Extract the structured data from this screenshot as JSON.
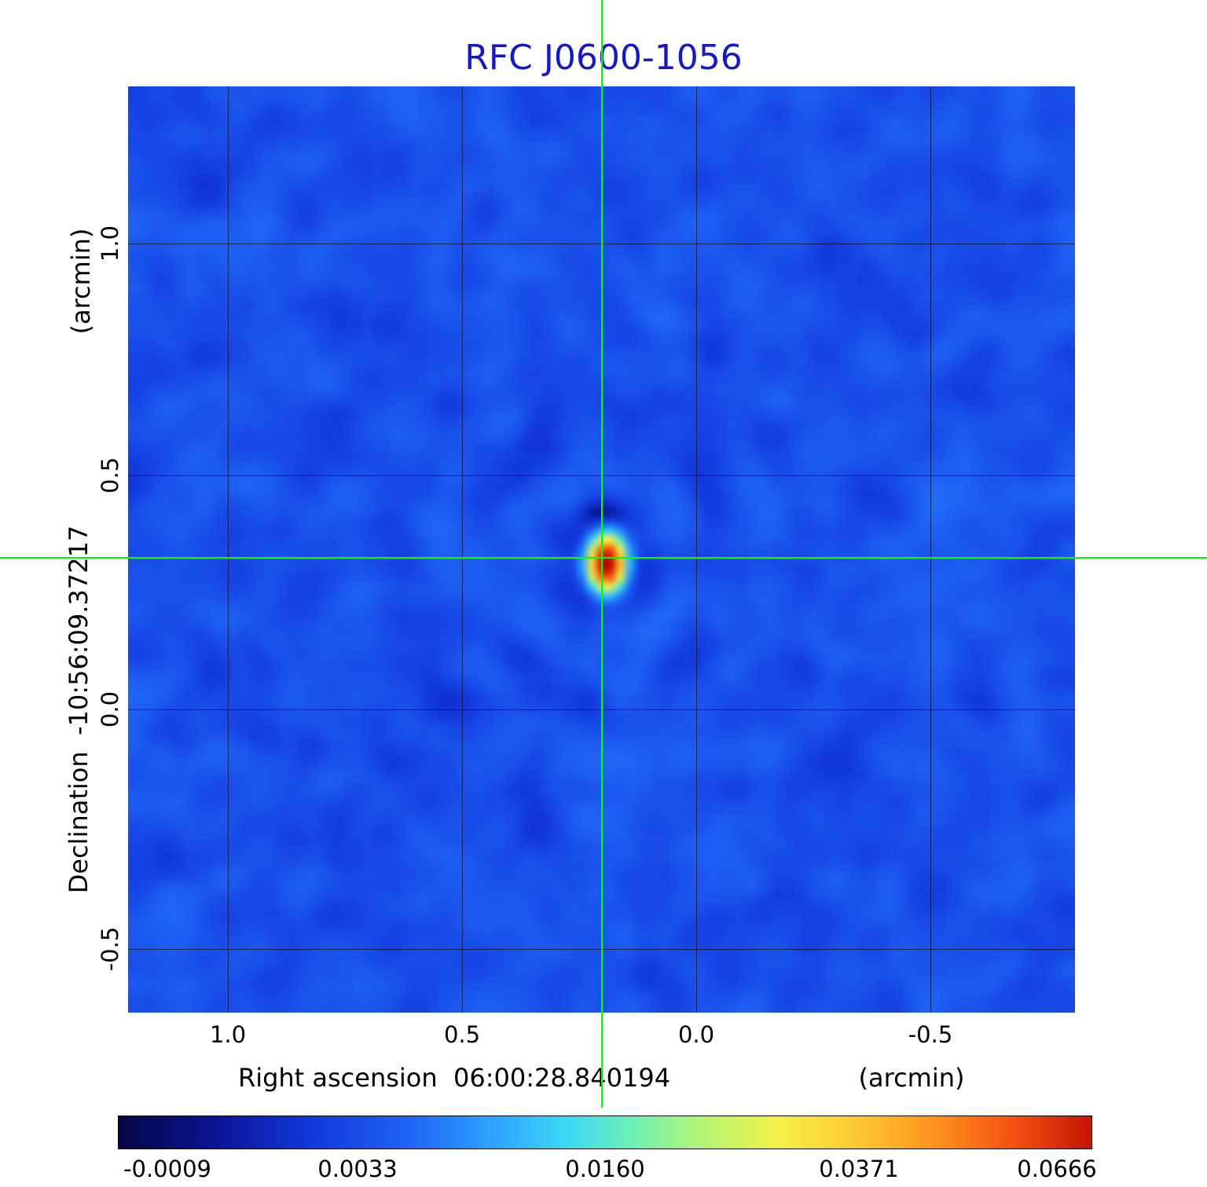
{
  "title": "RFC J0600-1056",
  "title_color": "#1418cc",
  "crosshair_color": "#00ff00",
  "axes": {
    "y": {
      "unit_label": "(arcmin)",
      "axis_label": "Declination  -10:56:09.37217",
      "ticks": [
        "1.0",
        "0.5",
        "0.0",
        "-0.5"
      ]
    },
    "x": {
      "unit_label": "(arcmin)",
      "axis_label": "Right ascension  06:00:28.840194",
      "ticks": [
        "1.0",
        "0.5",
        "0.0",
        "-0.5"
      ]
    }
  },
  "colorbar": {
    "labels": [
      "-0.0009",
      "0.0033",
      "0.0160",
      "0.0371",
      "0.0666"
    ]
  },
  "colormap_stops": [
    {
      "t": 0.0,
      "color": "#050546"
    },
    {
      "t": 0.1,
      "color": "#0a1496"
    },
    {
      "t": 0.2,
      "color": "#1238dc"
    },
    {
      "t": 0.3,
      "color": "#1e64f5"
    },
    {
      "t": 0.38,
      "color": "#2da0ff"
    },
    {
      "t": 0.46,
      "color": "#3cd7f5"
    },
    {
      "t": 0.53,
      "color": "#6ef0b4"
    },
    {
      "t": 0.6,
      "color": "#b4f573"
    },
    {
      "t": 0.68,
      "color": "#f5f046"
    },
    {
      "t": 0.76,
      "color": "#ffc832"
    },
    {
      "t": 0.84,
      "color": "#ff911e"
    },
    {
      "t": 0.92,
      "color": "#f5500f"
    },
    {
      "t": 1.0,
      "color": "#c31405"
    }
  ],
  "chart_data": {
    "type": "heatmap",
    "title": "RFC J0600-1056",
    "xlabel": "Right ascension 06:00:28.840194 (arcmin)",
    "ylabel": "Declination -10:56:09.37217 (arcmin)",
    "x_ticks": [
      1.0,
      0.5,
      0.0,
      -0.5
    ],
    "y_ticks": [
      1.0,
      0.5,
      0.0,
      -0.5
    ],
    "x_range_arcmin": [
      1.21,
      -0.8
    ],
    "y_range_arcmin": [
      1.34,
      -0.66
    ],
    "colorbar_ticks": [
      -0.0009,
      0.0033,
      0.016,
      0.0371,
      0.0666
    ],
    "value_min": -0.0023,
    "value_max": 0.0666,
    "intensity_scale": "sqrt",
    "background_mean": 0.0022,
    "source_peak": {
      "x_arcmin": 0.2,
      "y_arcmin": 0.32,
      "value": 0.0666
    },
    "crosshair_arcmin": {
      "x": 0.2,
      "y": 0.32
    },
    "grid": true,
    "colormap": "rainbow",
    "legend_position": "colorbar-bottom"
  }
}
